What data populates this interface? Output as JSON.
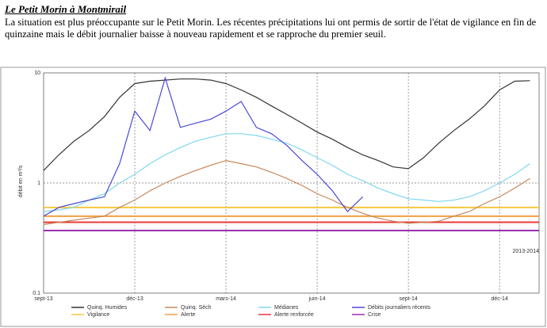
{
  "chart_data": {
    "type": "line",
    "title": "Le Petit Morin à Montmirail",
    "subtitle": "La situation est plus préoccupante sur le Petit Morin. Les récentes précipitations lui ont permis de sortir de l'état de vigilance en fin de quinzaine mais le débit journalier baisse à nouveau rapidement et se rapproche du premier seuil.",
    "y_label": "débit en m³/s",
    "note": "2013-2014",
    "ylog": true,
    "grid": true,
    "ylim": [
      0.1,
      10
    ],
    "yticks": [
      0.1,
      1,
      10
    ],
    "xlim": [
      0,
      16.3
    ],
    "xticks": [
      {
        "value": 0,
        "label": "sept-13"
      },
      {
        "value": 3,
        "label": "déc-13"
      },
      {
        "value": 6,
        "label": "mars-14"
      },
      {
        "value": 9,
        "label": "juin-14"
      },
      {
        "value": 12,
        "label": "sept-14"
      },
      {
        "value": 15,
        "label": "déc-14"
      }
    ],
    "x": [
      0,
      0.5,
      1,
      1.5,
      2,
      2.5,
      3,
      3.5,
      4,
      4.5,
      5,
      5.5,
      6,
      6.5,
      7,
      7.5,
      8,
      8.5,
      9,
      9.5,
      10,
      10.5,
      11,
      11.5,
      12,
      12.5,
      13,
      13.5,
      14,
      14.5,
      15,
      15.5,
      16
    ],
    "series": [
      {
        "name": "Quinq. Humides",
        "color": "#333333",
        "values": [
          1.3,
          1.8,
          2.4,
          3,
          4,
          6,
          8,
          8.4,
          8.6,
          8.8,
          8.8,
          8.6,
          8,
          7,
          6,
          5,
          4.2,
          3.5,
          2.9,
          2.5,
          2.1,
          1.8,
          1.6,
          1.4,
          1.35,
          1.7,
          2.3,
          3,
          3.8,
          5,
          7,
          8.4,
          8.5
        ]
      },
      {
        "name": "Quinq. Sèch",
        "color": "#c8875a",
        "values": [
          0.42,
          0.44,
          0.46,
          0.48,
          0.5,
          0.6,
          0.7,
          0.85,
          1.0,
          1.15,
          1.3,
          1.45,
          1.6,
          1.5,
          1.4,
          1.25,
          1.1,
          0.95,
          0.8,
          0.7,
          0.6,
          0.53,
          0.48,
          0.45,
          0.43,
          0.44,
          0.45,
          0.5,
          0.55,
          0.65,
          0.75,
          0.9,
          1.1
        ]
      },
      {
        "name": "Médianes",
        "color": "#7fd8ee",
        "values": [
          0.55,
          0.57,
          0.6,
          0.7,
          0.8,
          1.0,
          1.2,
          1.5,
          1.8,
          2.1,
          2.4,
          2.6,
          2.8,
          2.8,
          2.7,
          2.5,
          2.3,
          2.0,
          1.7,
          1.45,
          1.2,
          1.05,
          0.9,
          0.8,
          0.72,
          0.7,
          0.68,
          0.7,
          0.75,
          0.85,
          1.0,
          1.2,
          1.5
        ]
      },
      {
        "name": "Débits journaliers récents",
        "color": "#4a4ad8",
        "values": [
          0.5,
          0.6,
          0.65,
          0.7,
          0.75,
          1.5,
          4.5,
          3.0,
          9,
          3.2,
          3.5,
          3.8,
          4.5,
          5.5,
          3.2,
          2.8,
          2.2,
          1.6,
          1.2,
          0.85,
          0.55,
          0.75,
          null,
          null,
          null,
          null,
          null,
          null,
          null,
          null,
          null,
          null,
          null
        ]
      }
    ],
    "thresholds": [
      {
        "name": "Vigilance",
        "color": "#f5c842",
        "value": 0.6
      },
      {
        "name": "Alerte",
        "color": "#f0a040",
        "value": 0.5
      },
      {
        "name": "Alerte renforcée",
        "color": "#e8383a",
        "value": 0.44
      },
      {
        "name": "Crise",
        "color": "#9b30b0",
        "value": 0.37
      }
    ]
  }
}
